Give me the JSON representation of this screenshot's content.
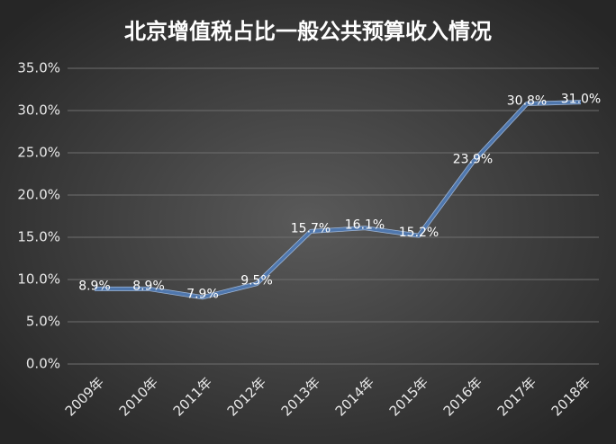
{
  "chart_data": {
    "type": "line",
    "title": "北京增值税占比一般公共预算收入情况",
    "categories": [
      "2009年",
      "2010年",
      "2011年",
      "2012年",
      "2013年",
      "2014年",
      "2015年",
      "2016年",
      "2017年",
      "2018年"
    ],
    "values": [
      8.9,
      8.9,
      7.9,
      9.5,
      15.7,
      16.1,
      15.2,
      23.9,
      30.8,
      31.0
    ],
    "value_labels": [
      "8.9%",
      "8.9%",
      "7.9%",
      "9.5%",
      "15.7%",
      "16.1%",
      "15.2%",
      "23.9%",
      "30.8%",
      "31.0%"
    ],
    "color": "#4f77ad",
    "ylim": [
      0,
      35
    ],
    "yticks": [
      {
        "value": 0,
        "label": "0.0%"
      },
      {
        "value": 5,
        "label": "5.0%"
      },
      {
        "value": 10,
        "label": "10.0%"
      },
      {
        "value": 15,
        "label": "15.0%"
      },
      {
        "value": 20,
        "label": "20.0%"
      },
      {
        "value": 25,
        "label": "25.0%"
      },
      {
        "value": 30,
        "label": "30.0%"
      },
      {
        "value": 35,
        "label": "35.0%"
      }
    ],
    "grid": true
  }
}
